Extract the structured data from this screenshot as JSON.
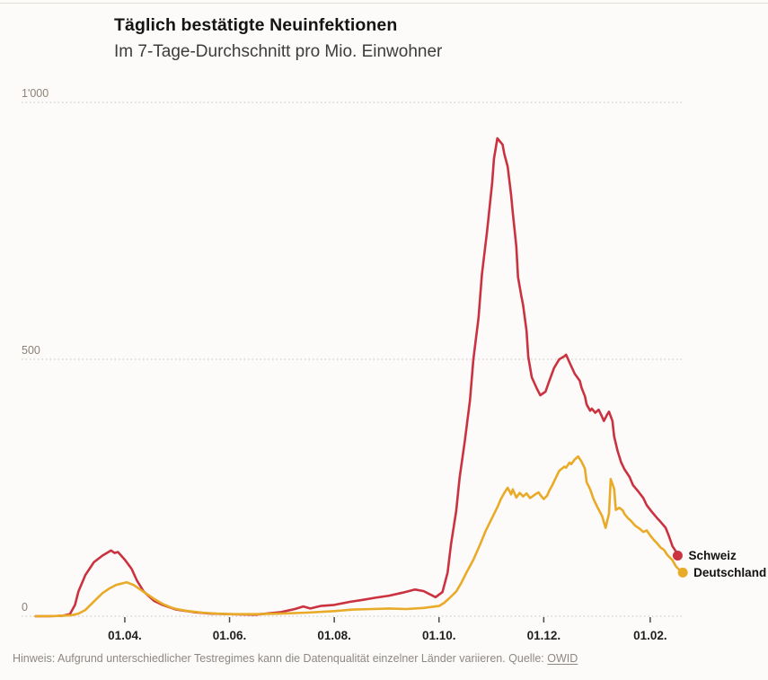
{
  "header": {
    "title": "Täglich bestätigte Neuinfektionen",
    "subtitle": "Im 7-Tage-Durchschnitt pro Mio. Einwohner"
  },
  "footer": {
    "note": "Hinweis: Aufgrund unterschiedlicher Testregimes kann die Datenqualität einzelner Länder variieren. Quelle: ",
    "source_label": "OWID"
  },
  "chart_data": {
    "type": "line",
    "title": "Täglich bestätigte Neuinfektionen",
    "subtitle": "Im 7-Tage-Durchschnitt pro Mio. Einwohner",
    "grid": "horizontal-dotted",
    "legend_position": "end-of-line",
    "x_domain": [
      "2020-02-04",
      "2021-02-22"
    ],
    "ylim": [
      0,
      1000
    ],
    "y_ticks": [
      {
        "value": 0,
        "label": "0"
      },
      {
        "value": 500,
        "label": "500"
      },
      {
        "value": 1000,
        "label": "1'000"
      }
    ],
    "x_ticks": [
      {
        "date": "2020-04-01",
        "label": "01.04."
      },
      {
        "date": "2020-06-01",
        "label": "01.06."
      },
      {
        "date": "2020-08-01",
        "label": "01.08."
      },
      {
        "date": "2020-10-01",
        "label": "01.10."
      },
      {
        "date": "2020-12-01",
        "label": "01.12."
      },
      {
        "date": "2021-02-01",
        "label": "01.02."
      }
    ],
    "series": [
      {
        "name": "Schweiz",
        "color": "#cb3240",
        "points": [
          [
            "2020-02-09",
            0
          ],
          [
            "2020-02-17",
            0
          ],
          [
            "2020-02-25",
            1
          ],
          [
            "2020-02-29",
            4
          ],
          [
            "2020-03-03",
            22
          ],
          [
            "2020-03-05",
            48
          ],
          [
            "2020-03-09",
            80
          ],
          [
            "2020-03-14",
            105
          ],
          [
            "2020-03-19",
            118
          ],
          [
            "2020-03-24",
            128
          ],
          [
            "2020-03-26",
            123
          ],
          [
            "2020-03-28",
            125
          ],
          [
            "2020-04-01",
            110
          ],
          [
            "2020-04-05",
            92
          ],
          [
            "2020-04-08",
            70
          ],
          [
            "2020-04-12",
            48
          ],
          [
            "2020-04-18",
            30
          ],
          [
            "2020-04-23",
            22
          ],
          [
            "2020-05-01",
            13
          ],
          [
            "2020-05-11",
            8
          ],
          [
            "2020-05-21",
            5
          ],
          [
            "2020-06-01",
            4
          ],
          [
            "2020-06-16",
            3
          ],
          [
            "2020-07-01",
            8
          ],
          [
            "2020-07-09",
            14
          ],
          [
            "2020-07-14",
            19
          ],
          [
            "2020-07-18",
            15
          ],
          [
            "2020-07-24",
            20
          ],
          [
            "2020-08-01",
            22
          ],
          [
            "2020-08-10",
            28
          ],
          [
            "2020-08-18",
            32
          ],
          [
            "2020-08-25",
            36
          ],
          [
            "2020-09-02",
            40
          ],
          [
            "2020-09-10",
            46
          ],
          [
            "2020-09-17",
            52
          ],
          [
            "2020-09-22",
            49
          ],
          [
            "2020-09-29",
            37
          ],
          [
            "2020-10-03",
            47
          ],
          [
            "2020-10-06",
            85
          ],
          [
            "2020-10-08",
            140
          ],
          [
            "2020-10-11",
            205
          ],
          [
            "2020-10-13",
            270
          ],
          [
            "2020-10-16",
            340
          ],
          [
            "2020-10-19",
            420
          ],
          [
            "2020-10-21",
            500
          ],
          [
            "2020-10-24",
            580
          ],
          [
            "2020-10-26",
            665
          ],
          [
            "2020-10-29",
            750
          ],
          [
            "2020-11-01",
            845
          ],
          [
            "2020-11-02",
            890
          ],
          [
            "2020-11-04",
            930
          ],
          [
            "2020-11-07",
            918
          ],
          [
            "2020-11-08",
            900
          ],
          [
            "2020-11-10",
            875
          ],
          [
            "2020-11-12",
            820
          ],
          [
            "2020-11-13",
            785
          ],
          [
            "2020-11-15",
            720
          ],
          [
            "2020-11-16",
            660
          ],
          [
            "2020-11-18",
            622
          ],
          [
            "2020-11-19",
            605
          ],
          [
            "2020-11-21",
            555
          ],
          [
            "2020-11-22",
            505
          ],
          [
            "2020-11-24",
            465
          ],
          [
            "2020-11-27",
            443
          ],
          [
            "2020-11-29",
            430
          ],
          [
            "2020-12-02",
            437
          ],
          [
            "2020-12-04",
            456
          ],
          [
            "2020-12-07",
            483
          ],
          [
            "2020-12-10",
            500
          ],
          [
            "2020-12-13",
            506
          ],
          [
            "2020-12-14",
            509
          ],
          [
            "2020-12-16",
            494
          ],
          [
            "2020-12-19",
            472
          ],
          [
            "2020-12-22",
            458
          ],
          [
            "2020-12-23",
            445
          ],
          [
            "2020-12-25",
            428
          ],
          [
            "2020-12-26",
            412
          ],
          [
            "2020-12-28",
            400
          ],
          [
            "2020-12-29",
            404
          ],
          [
            "2020-12-31",
            396
          ],
          [
            "2021-01-02",
            402
          ],
          [
            "2021-01-04",
            388
          ],
          [
            "2021-01-05",
            380
          ],
          [
            "2021-01-07",
            393
          ],
          [
            "2021-01-08",
            398
          ],
          [
            "2021-01-10",
            380
          ],
          [
            "2021-01-11",
            350
          ],
          [
            "2021-01-13",
            322
          ],
          [
            "2021-01-15",
            300
          ],
          [
            "2021-01-17",
            286
          ],
          [
            "2021-01-20",
            271
          ],
          [
            "2021-01-22",
            255
          ],
          [
            "2021-01-25",
            243
          ],
          [
            "2021-01-28",
            230
          ],
          [
            "2021-01-30",
            216
          ],
          [
            "2021-02-02",
            203
          ],
          [
            "2021-02-05",
            191
          ],
          [
            "2021-02-07",
            184
          ],
          [
            "2021-02-10",
            172
          ],
          [
            "2021-02-12",
            155
          ],
          [
            "2021-02-14",
            136
          ],
          [
            "2021-02-16",
            126
          ],
          [
            "2021-02-17",
            118
          ]
        ]
      },
      {
        "name": "Deutschland",
        "color": "#e9aa28",
        "points": [
          [
            "2020-02-09",
            0
          ],
          [
            "2020-02-22",
            0.5
          ],
          [
            "2020-03-01",
            2
          ],
          [
            "2020-03-05",
            5
          ],
          [
            "2020-03-09",
            12
          ],
          [
            "2020-03-12",
            22
          ],
          [
            "2020-03-15",
            32
          ],
          [
            "2020-03-19",
            45
          ],
          [
            "2020-03-23",
            54
          ],
          [
            "2020-03-27",
            61
          ],
          [
            "2020-04-02",
            66
          ],
          [
            "2020-04-06",
            61
          ],
          [
            "2020-04-10",
            52
          ],
          [
            "2020-04-14",
            43
          ],
          [
            "2020-04-18",
            34
          ],
          [
            "2020-04-23",
            24
          ],
          [
            "2020-04-28",
            17
          ],
          [
            "2020-05-01",
            14
          ],
          [
            "2020-05-08",
            10
          ],
          [
            "2020-05-16",
            7
          ],
          [
            "2020-05-24",
            5
          ],
          [
            "2020-06-01",
            4
          ],
          [
            "2020-06-16",
            4
          ],
          [
            "2020-07-01",
            5
          ],
          [
            "2020-07-16",
            7
          ],
          [
            "2020-08-01",
            10
          ],
          [
            "2020-08-12",
            13
          ],
          [
            "2020-08-23",
            14
          ],
          [
            "2020-09-02",
            15
          ],
          [
            "2020-09-12",
            14
          ],
          [
            "2020-09-22",
            16
          ],
          [
            "2020-10-01",
            20
          ],
          [
            "2020-10-04",
            26
          ],
          [
            "2020-10-07",
            35
          ],
          [
            "2020-10-11",
            48
          ],
          [
            "2020-10-14",
            65
          ],
          [
            "2020-10-17",
            85
          ],
          [
            "2020-10-21",
            110
          ],
          [
            "2020-10-25",
            140
          ],
          [
            "2020-10-28",
            165
          ],
          [
            "2020-11-01",
            192
          ],
          [
            "2020-11-04",
            212
          ],
          [
            "2020-11-06",
            228
          ],
          [
            "2020-11-08",
            240
          ],
          [
            "2020-11-10",
            250
          ],
          [
            "2020-11-12",
            237
          ],
          [
            "2020-11-13",
            247
          ],
          [
            "2020-11-15",
            231
          ],
          [
            "2020-11-17",
            240
          ],
          [
            "2020-11-19",
            233
          ],
          [
            "2020-11-21",
            239
          ],
          [
            "2020-11-23",
            230
          ],
          [
            "2020-11-26",
            237
          ],
          [
            "2020-11-28",
            241
          ],
          [
            "2020-11-29",
            236
          ],
          [
            "2020-12-01",
            228
          ],
          [
            "2020-12-03",
            235
          ],
          [
            "2020-12-04",
            243
          ],
          [
            "2020-12-06",
            255
          ],
          [
            "2020-12-08",
            269
          ],
          [
            "2020-12-10",
            283
          ],
          [
            "2020-12-13",
            291
          ],
          [
            "2020-12-14",
            289
          ],
          [
            "2020-12-16",
            299
          ],
          [
            "2020-12-17",
            296
          ],
          [
            "2020-12-19",
            305
          ],
          [
            "2020-12-21",
            311
          ],
          [
            "2020-12-23",
            301
          ],
          [
            "2020-12-25",
            287
          ],
          [
            "2020-12-26",
            261
          ],
          [
            "2020-12-28",
            247
          ],
          [
            "2020-12-30",
            228
          ],
          [
            "2021-01-01",
            214
          ],
          [
            "2021-01-04",
            195
          ],
          [
            "2021-01-05",
            183
          ],
          [
            "2021-01-06",
            172
          ],
          [
            "2021-01-08",
            200
          ],
          [
            "2021-01-09",
            267
          ],
          [
            "2021-01-11",
            248
          ],
          [
            "2021-01-12",
            207
          ],
          [
            "2021-01-14",
            211
          ],
          [
            "2021-01-16",
            206
          ],
          [
            "2021-01-17",
            199
          ],
          [
            "2021-01-19",
            191
          ],
          [
            "2021-01-21",
            185
          ],
          [
            "2021-01-23",
            177
          ],
          [
            "2021-01-26",
            170
          ],
          [
            "2021-01-28",
            164
          ],
          [
            "2021-01-30",
            167
          ],
          [
            "2021-02-01",
            157
          ],
          [
            "2021-02-03",
            149
          ],
          [
            "2021-02-05",
            142
          ],
          [
            "2021-02-07",
            134
          ],
          [
            "2021-02-09",
            129
          ],
          [
            "2021-02-11",
            119
          ],
          [
            "2021-02-14",
            109
          ],
          [
            "2021-02-16",
            97
          ],
          [
            "2021-02-18",
            90
          ],
          [
            "2021-02-20",
            85
          ]
        ]
      }
    ]
  }
}
